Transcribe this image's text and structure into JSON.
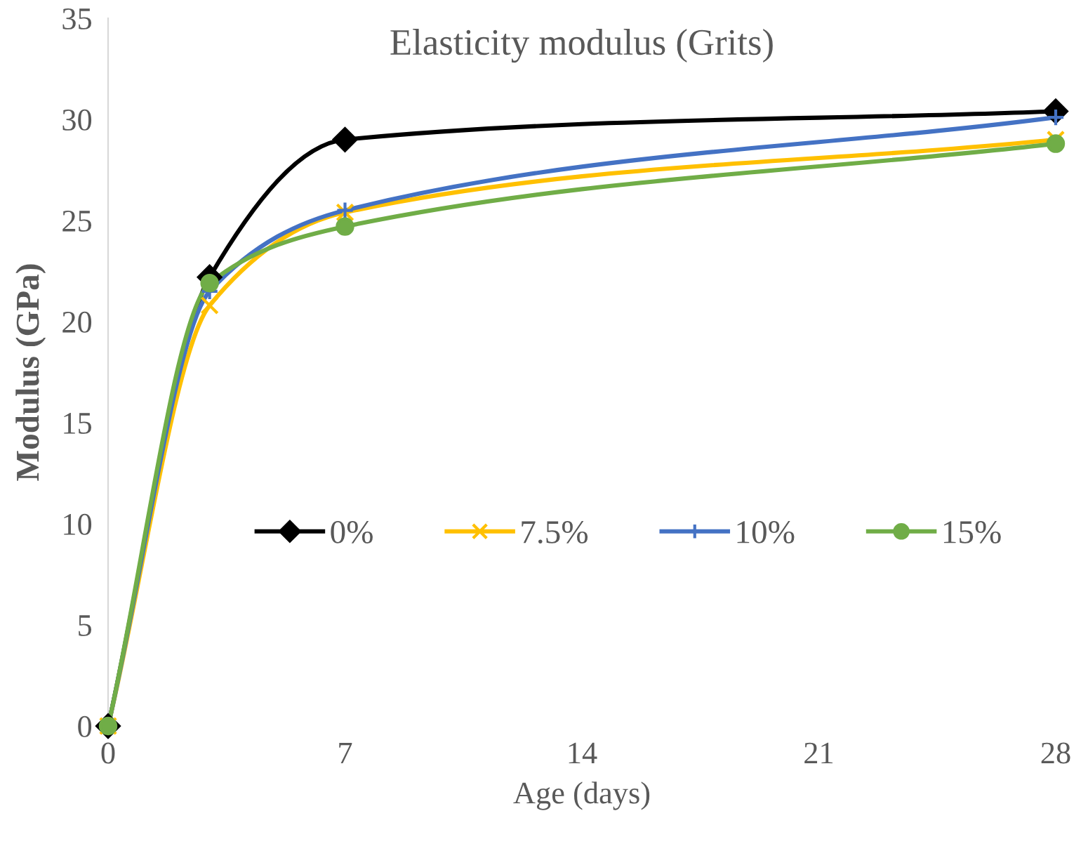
{
  "chart_data": {
    "type": "line",
    "title": "Elasticity modulus (Grits)",
    "xlabel": "Age (days)",
    "ylabel": "Modulus (GPa)",
    "x": [
      0,
      3,
      7,
      28
    ],
    "series": [
      {
        "name": "0%",
        "color": "#000000",
        "marker": "diamond",
        "values": [
          0,
          22.2,
          29.0,
          30.4
        ]
      },
      {
        "name": "7.5%",
        "color": "#ffc000",
        "marker": "cross",
        "values": [
          0,
          20.8,
          25.4,
          29.0
        ]
      },
      {
        "name": "10%",
        "color": "#4472c4",
        "marker": "plus",
        "values": [
          0,
          21.5,
          25.5,
          30.1
        ]
      },
      {
        "name": "15%",
        "color": "#70ad47",
        "marker": "circle",
        "values": [
          0,
          21.9,
          24.7,
          28.8
        ]
      }
    ],
    "xlim": [
      0,
      28
    ],
    "xticks": [
      0,
      7,
      14,
      21,
      28
    ],
    "ylim": [
      0,
      35
    ],
    "yticks": [
      0,
      5,
      10,
      15,
      20,
      25,
      30,
      35
    ],
    "grid": false,
    "legend": "center",
    "line_style": "solid"
  }
}
